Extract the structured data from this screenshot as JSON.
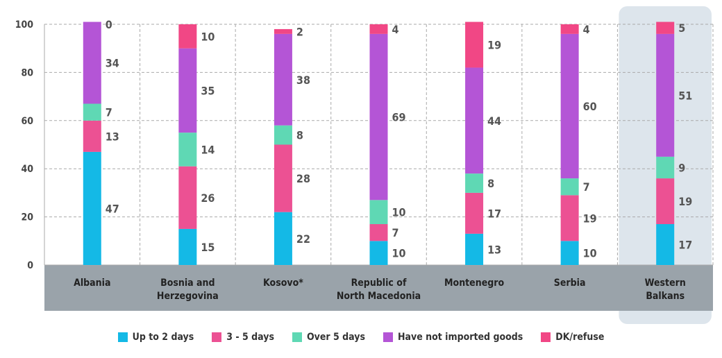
{
  "chart_data": {
    "type": "bar",
    "stacked": true,
    "title": "",
    "xlabel": "",
    "ylabel": "",
    "ylim": [
      0,
      100
    ],
    "yticks": [
      "0",
      "20",
      "40",
      "60",
      "80",
      "100"
    ],
    "grid": true,
    "legend_position": "bottom",
    "categories": [
      [
        "Albania"
      ],
      [
        "Bosnia and",
        "Herzegovina"
      ],
      [
        "Kosovo*"
      ],
      [
        "Republic of",
        "North Macedonia"
      ],
      [
        "Montenegro"
      ],
      [
        "Serbia"
      ],
      [
        "Western",
        "Balkans"
      ]
    ],
    "highlighted_category": "Western Balkans",
    "series": [
      {
        "name": "Up to 2 days",
        "color": "#14b9e6",
        "values": [
          47,
          15,
          22,
          10,
          13,
          10,
          17
        ]
      },
      {
        "name": "3 - 5 days",
        "color": "#ec5193",
        "values": [
          13,
          26,
          28,
          7,
          17,
          19,
          19
        ]
      },
      {
        "name": "Over 5 days",
        "color": "#5fd8b4",
        "values": [
          7,
          14,
          8,
          10,
          8,
          7,
          9
        ]
      },
      {
        "name": "Have not imported goods",
        "color": "#b455d6",
        "values": [
          34,
          35,
          38,
          69,
          44,
          60,
          51
        ]
      },
      {
        "name": "DK/refuse",
        "color": "#f14785",
        "values": [
          0,
          10,
          2,
          4,
          19,
          4,
          5
        ]
      }
    ],
    "colors": {
      "category_band": "#9aa3aa",
      "highlight_panel": "#dde5ec",
      "grid": "#a9a9a9"
    }
  }
}
